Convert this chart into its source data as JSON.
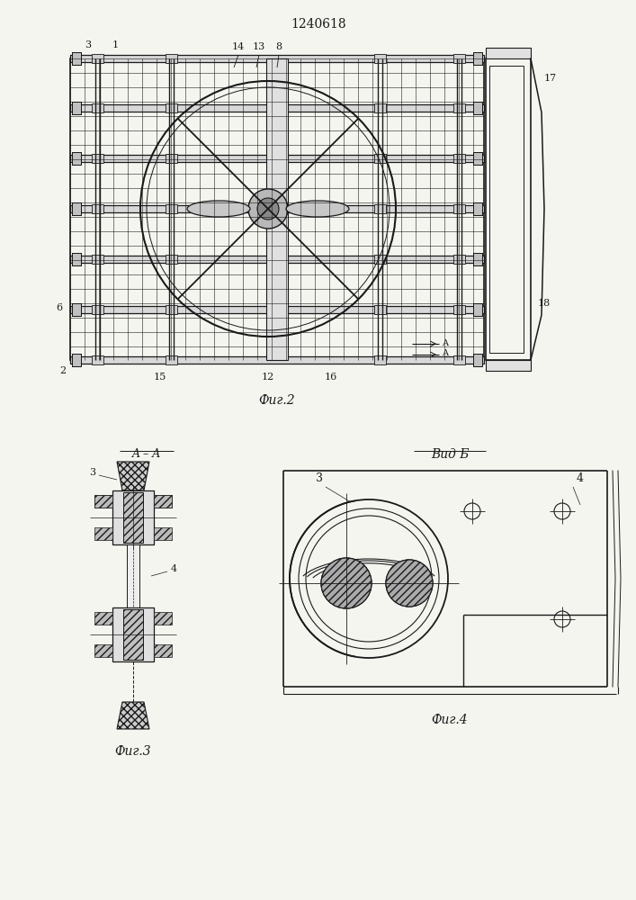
{
  "title": "1240618",
  "title_fontsize": 11,
  "fig2_label": "Фиг.2",
  "fig3_label": "Фиг.3",
  "fig4_label": "Фиг.4",
  "aa_label": "A – A",
  "vidb_label": "Вид Б",
  "line_color": "#1a1a1a",
  "bg_color": "#f5f5f0"
}
